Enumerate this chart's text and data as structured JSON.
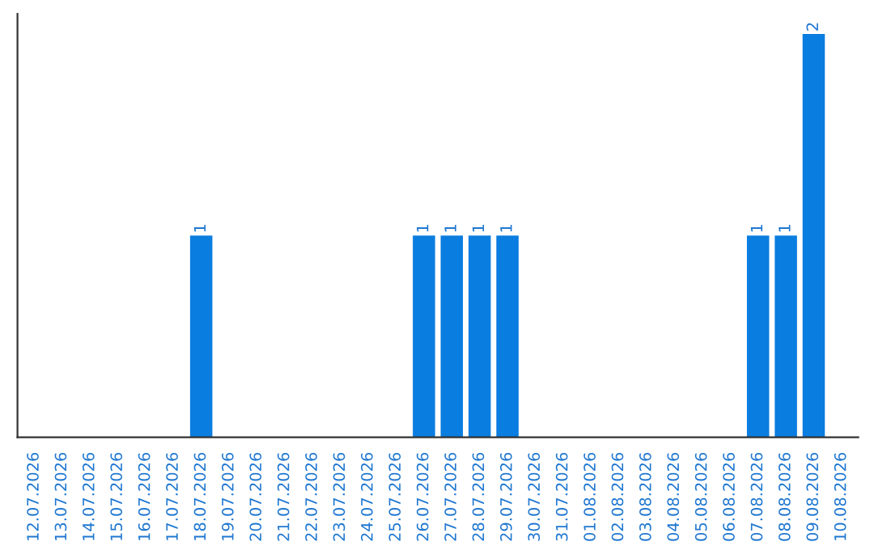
{
  "chart_data": {
    "type": "bar",
    "categories": [
      "12.07.2026",
      "13.07.2026",
      "14.07.2026",
      "15.07.2026",
      "16.07.2026",
      "17.07.2026",
      "18.07.2026",
      "19.07.2026",
      "20.07.2026",
      "21.07.2026",
      "22.07.2026",
      "23.07.2026",
      "24.07.2026",
      "25.07.2026",
      "26.07.2026",
      "27.07.2026",
      "28.07.2026",
      "29.07.2026",
      "30.07.2026",
      "31.07.2026",
      "01.08.2026",
      "02.08.2026",
      "03.08.2026",
      "04.08.2026",
      "05.08.2026",
      "06.08.2026",
      "07.08.2026",
      "08.08.2026",
      "09.08.2026",
      "10.08.2026"
    ],
    "values": [
      0,
      0,
      0,
      0,
      0,
      0,
      1,
      0,
      0,
      0,
      0,
      0,
      0,
      0,
      1,
      1,
      1,
      1,
      0,
      0,
      0,
      0,
      0,
      0,
      0,
      0,
      1,
      1,
      2,
      0
    ],
    "color": "#0a7de0",
    "value_labels": [
      null,
      null,
      null,
      null,
      null,
      null,
      "1",
      null,
      null,
      null,
      null,
      null,
      null,
      null,
      "1",
      "1",
      "1",
      "1",
      null,
      null,
      null,
      null,
      null,
      null,
      null,
      null,
      "1",
      "1",
      "2",
      null
    ],
    "tick_labels": "x",
    "grid": false,
    "legend": false
  }
}
